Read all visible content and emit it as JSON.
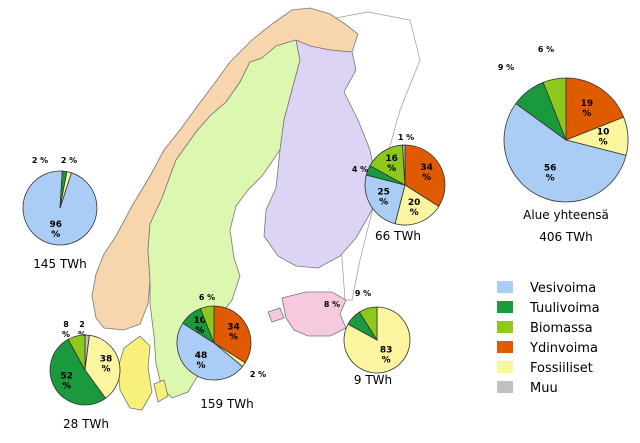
{
  "colors": {
    "Vesivoima": "#a9cdf5",
    "Tuulivoima": "#1a9a3c",
    "Biomassa": "#8fc81d",
    "Ydinvoima": "#e05a00",
    "Fossiiliset": "#fbf5a0",
    "Muu": "#c0c0c0",
    "map_norway": "#f7d6ad",
    "map_sweden": "#dcf7b0",
    "map_finland": "#ddd4f5",
    "map_estonia": "#f6c9df",
    "map_denmark": "#f7f07a",
    "map_russia": "#ffffff"
  },
  "legend": {
    "items": [
      "Vesivoima",
      "Tuulivoima",
      "Biomassa",
      "Ydinvoima",
      "Fossiiliset",
      "Muu"
    ]
  },
  "chart_data": {
    "type": "pie",
    "categories": [
      "Vesivoima",
      "Tuulivoima",
      "Biomassa",
      "Ydinvoima",
      "Fossiiliset",
      "Muu"
    ],
    "charts": [
      {
        "id": "norway",
        "total_label": "145 TWh",
        "slices": [
          {
            "category": "Vesivoima",
            "value": 96,
            "label": "96\n%"
          },
          {
            "category": "Tuulivoima",
            "value": 2,
            "label": "2 %"
          },
          {
            "category": "Fossiiliset",
            "value": 2,
            "label": "2 %"
          }
        ]
      },
      {
        "id": "finland",
        "total_label": "66 TWh",
        "slices": [
          {
            "category": "Ydinvoima",
            "value": 34,
            "label": "34\n%"
          },
          {
            "category": "Fossiiliset",
            "value": 20,
            "label": "20\n%"
          },
          {
            "category": "Vesivoima",
            "value": 25,
            "label": "25\n%"
          },
          {
            "category": "Tuulivoima",
            "value": 4,
            "label": "4 %"
          },
          {
            "category": "Biomassa",
            "value": 16,
            "label": "16\n%"
          },
          {
            "category": "Muu",
            "value": 1,
            "label": "1 %"
          }
        ]
      },
      {
        "id": "region",
        "title": "Alue yhteensä",
        "total_label": "406 TWh",
        "slices": [
          {
            "category": "Ydinvoima",
            "value": 19,
            "label": "19\n%"
          },
          {
            "category": "Fossiiliset",
            "value": 10,
            "label": "10\n%"
          },
          {
            "category": "Vesivoima",
            "value": 56,
            "label": "56\n%"
          },
          {
            "category": "Tuulivoima",
            "value": 9,
            "label": "9 %"
          },
          {
            "category": "Biomassa",
            "value": 6,
            "label": "6 %"
          }
        ]
      },
      {
        "id": "sweden",
        "total_label": "159 TWh",
        "slices": [
          {
            "category": "Ydinvoima",
            "value": 34,
            "label": "34\n%"
          },
          {
            "category": "Fossiiliset",
            "value": 2,
            "label": "2 %"
          },
          {
            "category": "Vesivoima",
            "value": 48,
            "label": "48\n%"
          },
          {
            "category": "Tuulivoima",
            "value": 10,
            "label": "10\n%"
          },
          {
            "category": "Biomassa",
            "value": 6,
            "label": "6 %"
          }
        ]
      },
      {
        "id": "denmark",
        "total_label": "28 TWh",
        "slices": [
          {
            "category": "Muu",
            "value": 2,
            "label": "2\n%"
          },
          {
            "category": "Fossiiliset",
            "value": 38,
            "label": "38\n%"
          },
          {
            "category": "Tuulivoima",
            "value": 52,
            "label": "52\n%"
          },
          {
            "category": "Biomassa",
            "value": 8,
            "label": "8\n%"
          }
        ]
      },
      {
        "id": "estonia",
        "total_label": "9 TWh",
        "slices": [
          {
            "category": "Fossiiliset",
            "value": 83,
            "label": "83\n%"
          },
          {
            "category": "Tuulivoima",
            "value": 8,
            "label": "8 %"
          },
          {
            "category": "Biomassa",
            "value": 9,
            "label": "9 %"
          }
        ]
      }
    ]
  }
}
